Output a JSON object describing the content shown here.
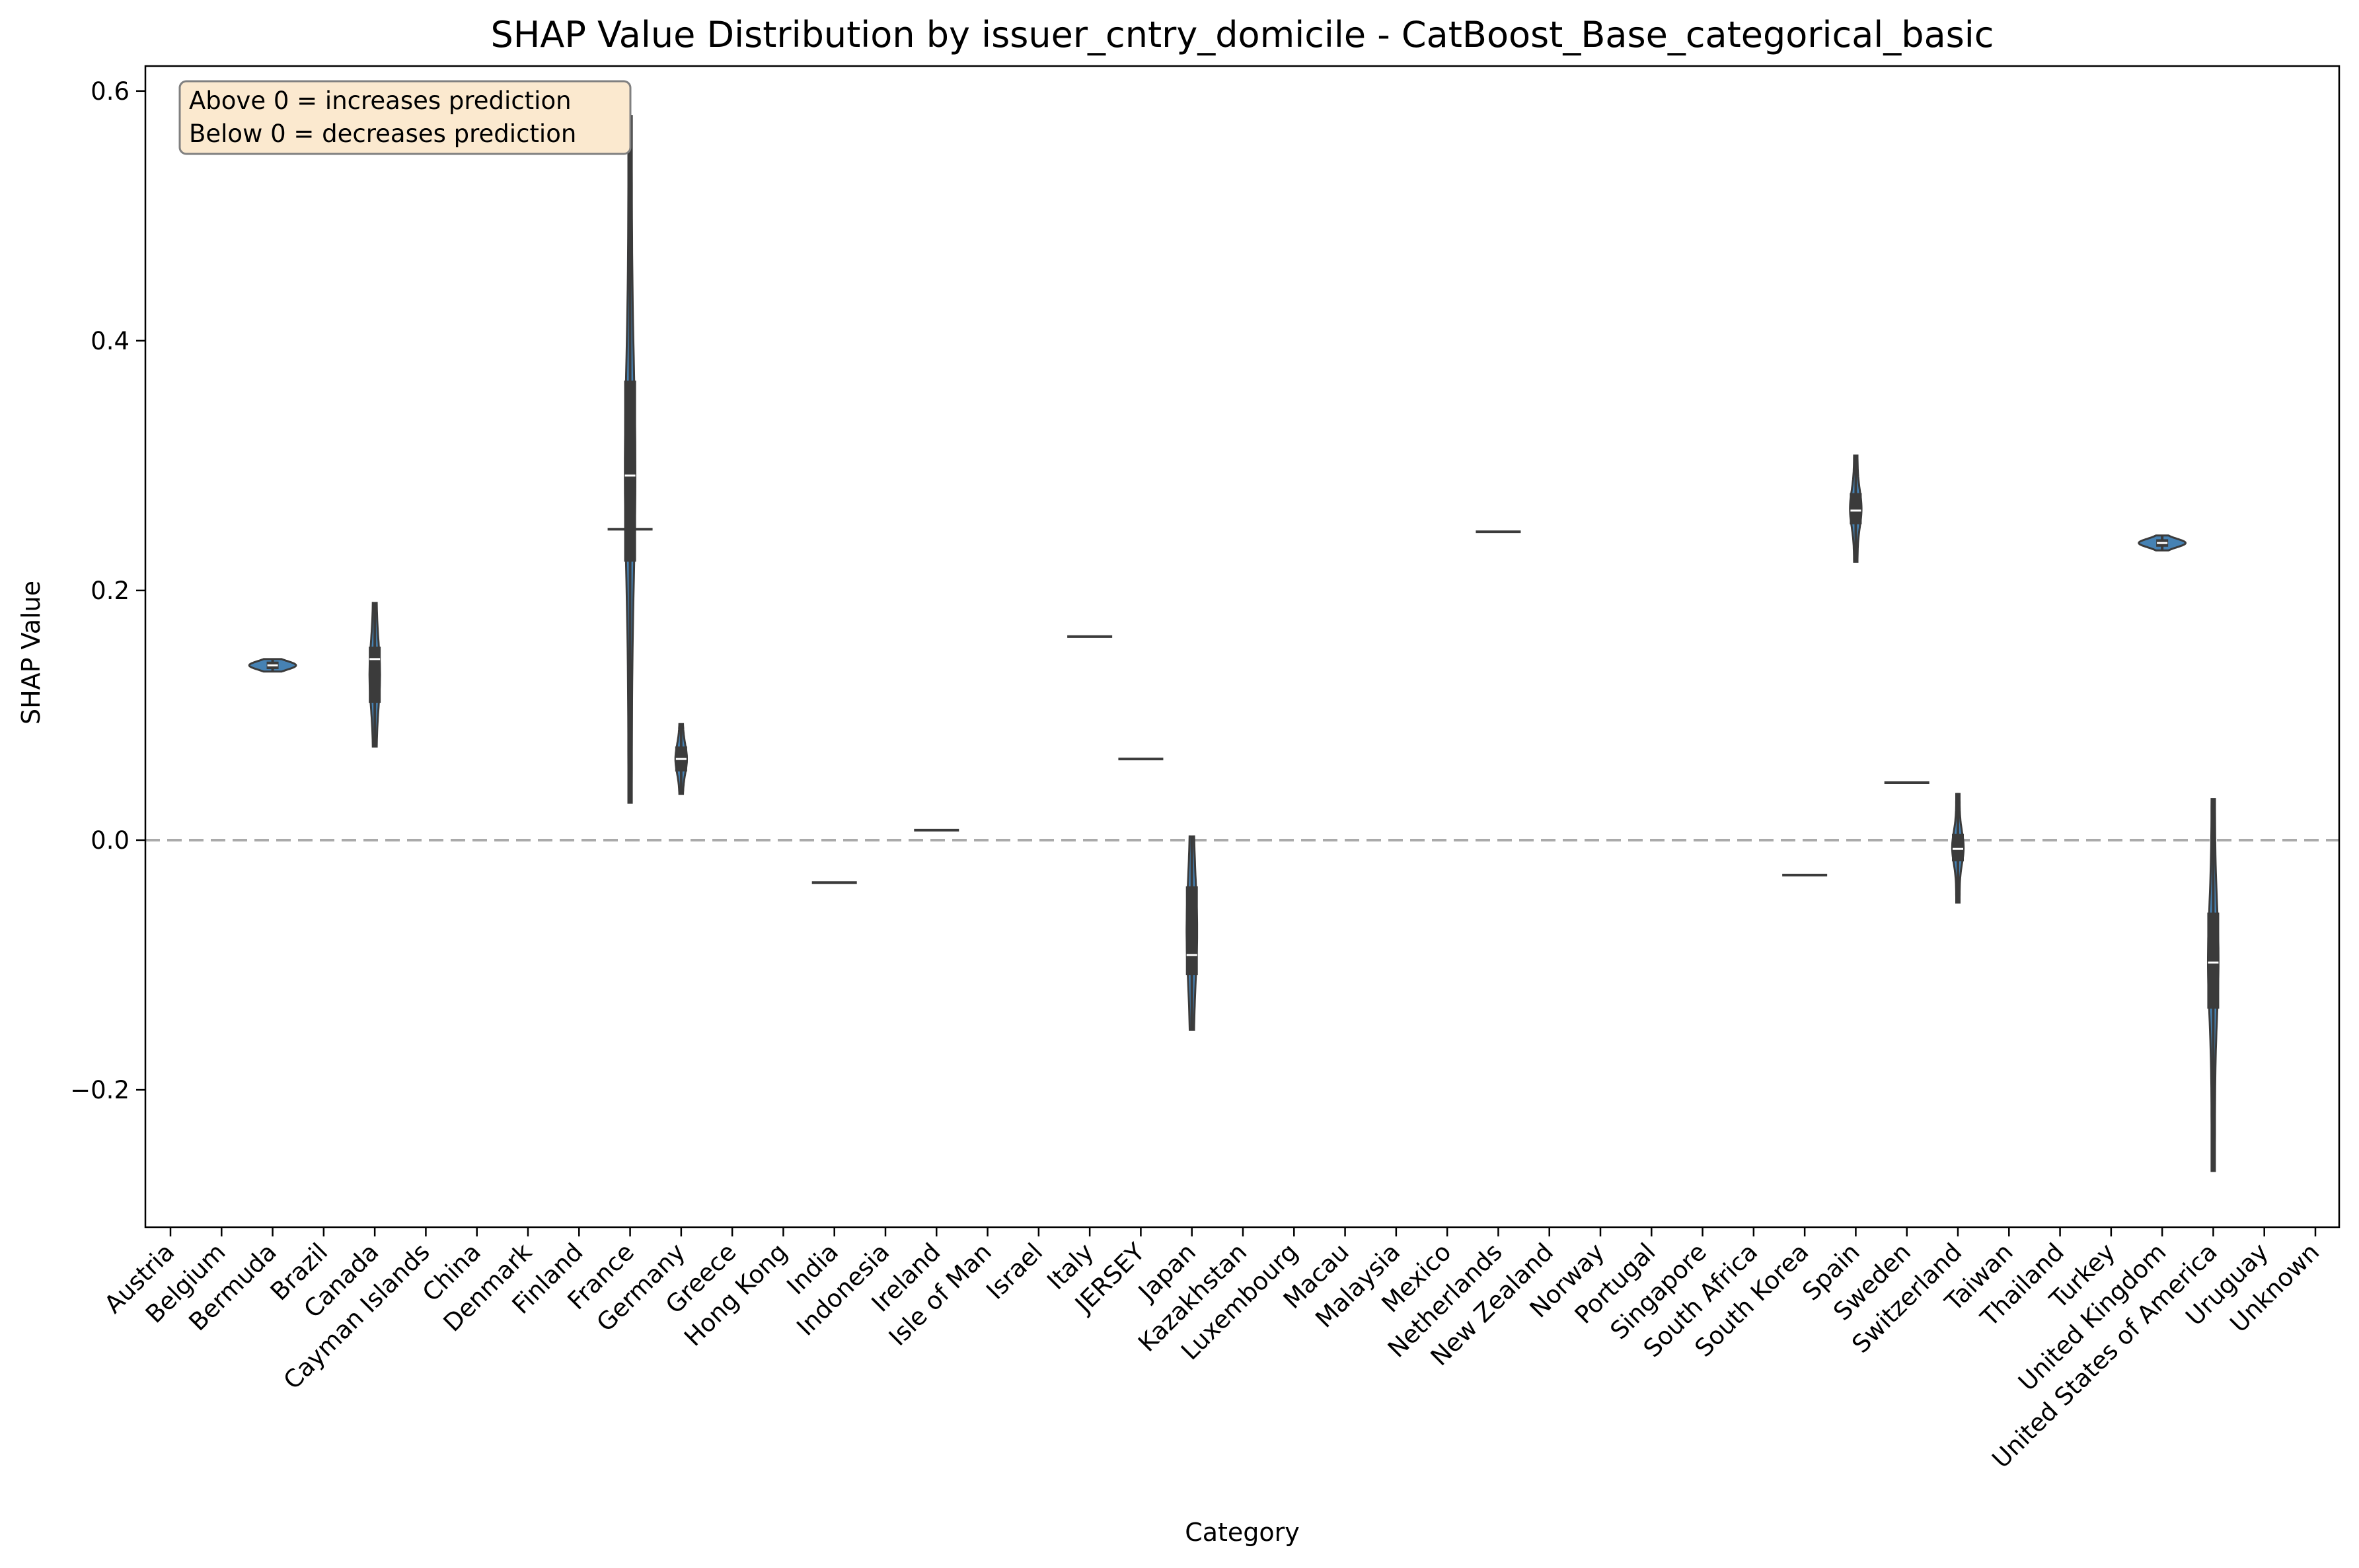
{
  "chart_data": {
    "type": "violin",
    "title": "SHAP Value Distribution by issuer_cntry_domicile - CatBoost_Base_categorical_basic",
    "xlabel": "Category",
    "ylabel": "SHAP Value",
    "ylim": [
      -0.31,
      0.62
    ],
    "yticks": [
      -0.2,
      0.0,
      0.2,
      0.4,
      0.6
    ],
    "ytick_labels": [
      "−0.2",
      "0.0",
      "0.2",
      "0.4",
      "0.6"
    ],
    "reference_line": {
      "y": 0.0,
      "style": "dashed",
      "color": "#aaaaaa"
    },
    "annotation": [
      "Above 0 = increases prediction",
      "Below 0 = decreases prediction"
    ],
    "annotation_placement": "top-left",
    "grid": false,
    "categories": [
      "Austria",
      "Belgium",
      "Bermuda",
      "Brazil",
      "Canada",
      "Cayman Islands",
      "China",
      "Denmark",
      "Finland",
      "France",
      "Germany",
      "Greece",
      "Hong Kong",
      "India",
      "Indonesia",
      "Ireland",
      "Isle of Man",
      "Israel",
      "Italy",
      "JERSEY",
      "Japan",
      "Kazakhstan",
      "Luxembourg",
      "Macau",
      "Malaysia",
      "Mexico",
      "Netherlands",
      "New Zealand",
      "Norway",
      "Portugal",
      "Singapore",
      "South Africa",
      "South Korea",
      "Spain",
      "Sweden",
      "Switzerland",
      "Taiwan",
      "Thailand",
      "Turkey",
      "United Kingdom",
      "United States of America",
      "Uruguay",
      "Unknown"
    ],
    "violins": [
      {
        "category": "Bermuda",
        "min": 0.135,
        "q1": 0.137,
        "median": 0.14,
        "q3": 0.143,
        "max": 0.145,
        "width": 0.85
      },
      {
        "category": "Canada",
        "min": 0.075,
        "q1": 0.11,
        "median": 0.145,
        "q3": 0.155,
        "max": 0.19,
        "width": 0.14
      },
      {
        "category": "France",
        "min": 0.03,
        "q1": 0.223,
        "median": 0.292,
        "q3": 0.368,
        "max": 0.58,
        "width": 0.14
      },
      {
        "category": "Germany",
        "min": 0.037,
        "q1": 0.055,
        "median": 0.065,
        "q3": 0.075,
        "max": 0.093,
        "width": 0.16
      },
      {
        "category": "Japan",
        "min": -0.152,
        "q1": -0.108,
        "median": -0.092,
        "q3": -0.037,
        "max": 0.003,
        "width": 0.14
      },
      {
        "category": "Spain",
        "min": 0.223,
        "q1": 0.253,
        "median": 0.264,
        "q3": 0.278,
        "max": 0.308,
        "width": 0.16
      },
      {
        "category": "Switzerland",
        "min": -0.05,
        "q1": -0.017,
        "median": -0.007,
        "q3": 0.005,
        "max": 0.037,
        "width": 0.16
      },
      {
        "category": "United Kingdom",
        "min": 0.232,
        "q1": 0.235,
        "median": 0.238,
        "q3": 0.241,
        "max": 0.244,
        "width": 0.85
      },
      {
        "category": "United States of America",
        "min": -0.265,
        "q1": -0.135,
        "median": -0.098,
        "q3": -0.058,
        "max": 0.033,
        "width": 0.14
      }
    ],
    "constant_values": [
      {
        "category": "France",
        "value": 0.249
      },
      {
        "category": "India",
        "value": -0.034
      },
      {
        "category": "Ireland",
        "value": 0.008
      },
      {
        "category": "Italy",
        "value": 0.163
      },
      {
        "category": "JERSEY",
        "value": 0.065
      },
      {
        "category": "Netherlands",
        "value": 0.247
      },
      {
        "category": "South Korea",
        "value": -0.028
      },
      {
        "category": "Sweden",
        "value": 0.046
      }
    ],
    "colors": {
      "violin_fill": "#4682b4",
      "box": "#3b3b3b",
      "median": "#ffffff",
      "annotation_bg": "#fbe9cf",
      "annotation_border": "#808080"
    }
  }
}
